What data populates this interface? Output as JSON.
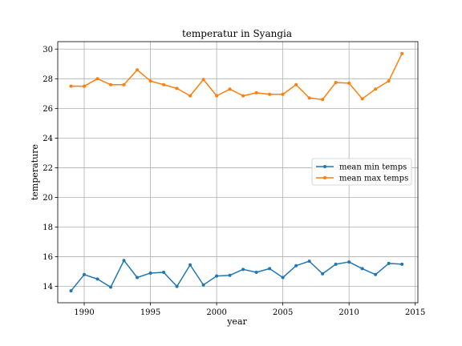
{
  "chart_data": {
    "type": "line",
    "title": "temperatur in Syangia",
    "xlabel": "year",
    "ylabel": "temperature",
    "xlim": [
      1988,
      2015.2
    ],
    "ylim": [
      12.9,
      30.5
    ],
    "xticks": [
      1990,
      1995,
      2000,
      2005,
      2010,
      2015
    ],
    "yticks": [
      14,
      16,
      18,
      20,
      22,
      24,
      26,
      28,
      30
    ],
    "grid": true,
    "legend_position": "center-right",
    "x": [
      1989,
      1990,
      1991,
      1992,
      1993,
      1994,
      1995,
      1996,
      1997,
      1998,
      1999,
      2000,
      2001,
      2002,
      2003,
      2004,
      2005,
      2006,
      2007,
      2008,
      2009,
      2010,
      2011,
      2012,
      2013,
      2014
    ],
    "series": [
      {
        "name": "mean min temps",
        "color": "#1f77b4",
        "values": [
          13.7,
          14.8,
          14.5,
          13.95,
          15.75,
          14.6,
          14.9,
          14.95,
          14.0,
          15.45,
          14.1,
          14.7,
          14.75,
          15.15,
          14.95,
          15.2,
          14.6,
          15.4,
          15.7,
          14.85,
          15.5,
          15.65,
          15.2,
          14.8,
          15.55,
          15.5
        ]
      },
      {
        "name": "mean max temps",
        "color": "#ff7f0e",
        "values": [
          27.5,
          27.5,
          28.0,
          27.6,
          27.6,
          28.6,
          27.85,
          27.6,
          27.35,
          26.85,
          27.95,
          26.85,
          27.3,
          26.85,
          27.05,
          26.95,
          26.95,
          27.6,
          26.7,
          26.6,
          27.75,
          27.7,
          26.65,
          27.3,
          27.85,
          29.7
        ]
      }
    ]
  }
}
